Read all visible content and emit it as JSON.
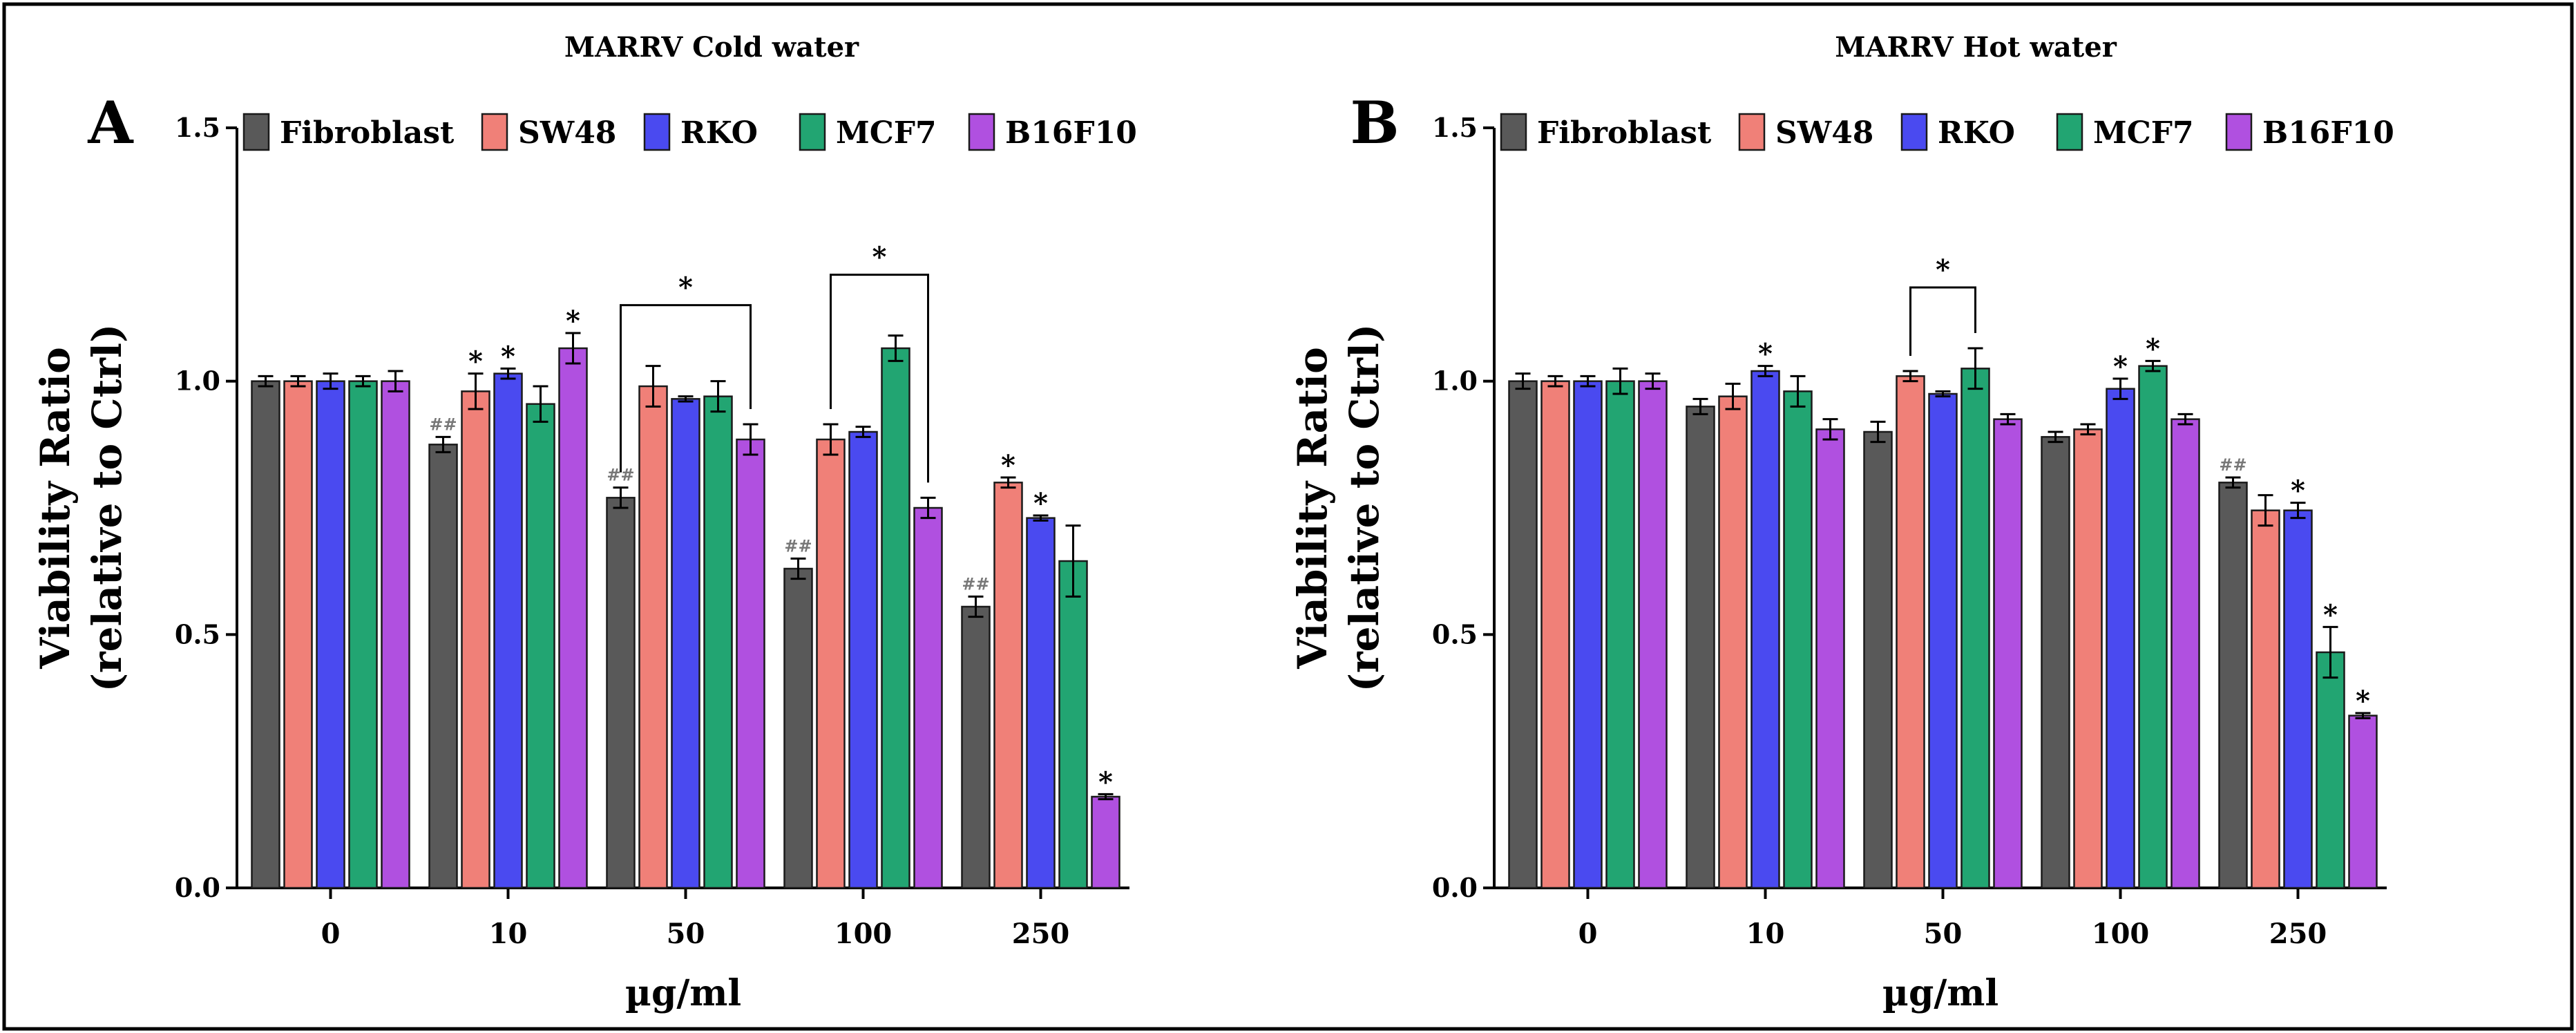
{
  "figure": {
    "border_color": "#000000",
    "series_colors": {
      "Fibroblast": "#595959",
      "SW48": "#F08078",
      "RKO": "#4A4AF0",
      "MCF7": "#22A572",
      "B16F10": "#B050E0"
    }
  },
  "chart_data": [
    {
      "type": "bar",
      "panel_label": "A",
      "title": "MARRV Cold water",
      "xlabel": "µg/ml",
      "ylabel": "Viability Ratio",
      "ylabel_sub": "(relative to Ctrl)",
      "ylim": [
        0,
        1.5
      ],
      "yticks": [
        "0.0",
        "0.5",
        "1.0",
        "1.5"
      ],
      "categories": [
        "0",
        "10",
        "50",
        "100",
        "250"
      ],
      "legend_position": "top",
      "series": [
        {
          "name": "Fibroblast",
          "values": [
            1.0,
            0.875,
            0.77,
            0.63,
            0.555
          ],
          "errors": [
            0.01,
            0.015,
            0.02,
            0.02,
            0.02
          ],
          "marks": [
            "",
            "##",
            "##",
            "##",
            "##"
          ]
        },
        {
          "name": "SW48",
          "values": [
            1.0,
            0.98,
            0.99,
            0.885,
            0.8
          ],
          "errors": [
            0.01,
            0.035,
            0.04,
            0.03,
            0.01
          ],
          "marks": [
            "",
            "*",
            "",
            "",
            "*"
          ]
        },
        {
          "name": "RKO",
          "values": [
            1.0,
            1.015,
            0.965,
            0.9,
            0.73
          ],
          "errors": [
            0.015,
            0.01,
            0.005,
            0.01,
            0.005
          ],
          "marks": [
            "",
            "*",
            "",
            "",
            "*"
          ]
        },
        {
          "name": "MCF7",
          "values": [
            1.0,
            0.955,
            0.97,
            1.065,
            0.645
          ],
          "errors": [
            0.01,
            0.035,
            0.03,
            0.025,
            0.07
          ],
          "marks": [
            "",
            "",
            "",
            "",
            ""
          ]
        },
        {
          "name": "B16F10",
          "values": [
            1.0,
            1.065,
            0.885,
            0.75,
            0.18
          ],
          "errors": [
            0.02,
            0.03,
            0.03,
            0.02,
            0.005
          ],
          "marks": [
            "",
            "*",
            "",
            "",
            "*"
          ]
        }
      ],
      "brackets": [
        {
          "category": "50",
          "from": "Fibroblast",
          "to": "B16F10",
          "label": "*"
        },
        {
          "category": "100",
          "from": "SW48",
          "to": "B16F10",
          "label": "*"
        }
      ]
    },
    {
      "type": "bar",
      "panel_label": "B",
      "title": "MARRV Hot water",
      "xlabel": "µg/ml",
      "ylabel": "Viability Ratio",
      "ylabel_sub": "(relative to Ctrl)",
      "ylim": [
        0,
        1.5
      ],
      "yticks": [
        "0.0",
        "0.5",
        "1.0",
        "1.5"
      ],
      "categories": [
        "0",
        "10",
        "50",
        "100",
        "250"
      ],
      "legend_position": "top",
      "series": [
        {
          "name": "Fibroblast",
          "values": [
            1.0,
            0.95,
            0.9,
            0.89,
            0.8
          ],
          "errors": [
            0.015,
            0.015,
            0.02,
            0.01,
            0.01
          ],
          "marks": [
            "",
            "",
            "",
            "",
            "##"
          ]
        },
        {
          "name": "SW48",
          "values": [
            1.0,
            0.97,
            1.01,
            0.905,
            0.745
          ],
          "errors": [
            0.01,
            0.025,
            0.01,
            0.01,
            0.03
          ],
          "marks": [
            "",
            "",
            "",
            "",
            ""
          ]
        },
        {
          "name": "RKO",
          "values": [
            1.0,
            1.02,
            0.975,
            0.985,
            0.745
          ],
          "errors": [
            0.01,
            0.01,
            0.005,
            0.02,
            0.015
          ],
          "marks": [
            "",
            "*",
            "",
            "*",
            "*"
          ]
        },
        {
          "name": "MCF7",
          "values": [
            1.0,
            0.98,
            1.025,
            1.03,
            0.465
          ],
          "errors": [
            0.025,
            0.03,
            0.04,
            0.01,
            0.05
          ],
          "marks": [
            "",
            "",
            "",
            "*",
            "*"
          ]
        },
        {
          "name": "B16F10",
          "values": [
            1.0,
            0.905,
            0.925,
            0.925,
            0.34
          ],
          "errors": [
            0.015,
            0.02,
            0.01,
            0.01,
            0.005
          ],
          "marks": [
            "",
            "",
            "",
            "",
            "*"
          ]
        }
      ],
      "brackets": [
        {
          "category": "50",
          "from": "SW48",
          "to": "MCF7",
          "label": "*"
        }
      ]
    }
  ]
}
